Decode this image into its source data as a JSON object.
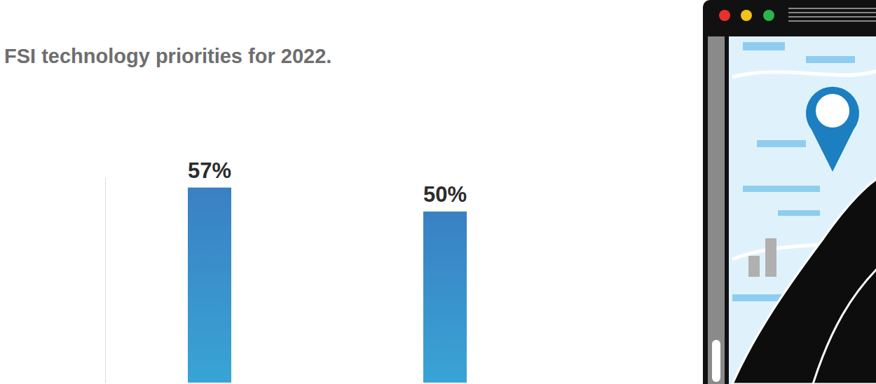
{
  "chart_data": {
    "type": "bar",
    "title": "FSI technology priorities for 2022.",
    "categories": [
      null,
      null
    ],
    "values": [
      57,
      50
    ],
    "value_labels": [
      "57%",
      "50%"
    ],
    "data_labels": true,
    "color": "#3a80c3",
    "ylim": [
      0,
      60
    ],
    "yticks": [],
    "tick_labels": false,
    "grid": false
  }
}
